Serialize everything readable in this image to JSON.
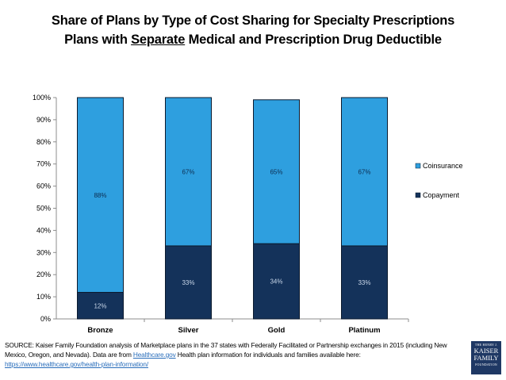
{
  "title": {
    "line1": "Share of Plans by Type of Cost Sharing for Specialty Prescriptions",
    "line2_pre": "Plans with ",
    "line2_underlined": "Separate",
    "line2_post": " Medical and Prescription Drug Deductible"
  },
  "colors": {
    "Coinsurance": "#2e9fdf",
    "Copayment": "#14325a",
    "coinsurance_label": "#0d2c4f",
    "copayment_label": "#c8d6e8"
  },
  "chart_data": {
    "type": "bar",
    "stacked": true,
    "title": "Share of Plans by Type of Cost Sharing for Specialty Prescriptions — Plans with Separate Medical and Prescription Drug Deductible",
    "categories": [
      "Bronze",
      "Silver",
      "Gold",
      "Platinum"
    ],
    "series": [
      {
        "name": "Copayment",
        "values": [
          12,
          33,
          34,
          33
        ],
        "labels": [
          "12%",
          "33%",
          "34%",
          "33%"
        ]
      },
      {
        "name": "Coinsurance",
        "values": [
          88,
          67,
          65,
          67
        ],
        "labels": [
          "88%",
          "67%",
          "65%",
          "67%"
        ]
      }
    ],
    "ylim": [
      0,
      100
    ],
    "yticks": [
      0,
      10,
      20,
      30,
      40,
      50,
      60,
      70,
      80,
      90,
      100
    ],
    "ytick_labels": [
      "0%",
      "10%",
      "20%",
      "30%",
      "40%",
      "50%",
      "60%",
      "70%",
      "80%",
      "90%",
      "100%"
    ],
    "xlabel": "",
    "ylabel": "",
    "grid": false,
    "legend": {
      "position": "right",
      "entries": [
        "Coinsurance",
        "Copayment"
      ]
    }
  },
  "source": {
    "text1": "SOURCE: Kaiser Family Foundation analysis of Marketplace plans in the 37 states with Federally Facilitated or Partnership exchanges in 2015 (including New Mexico, Oregon, and Nevada). Data are from ",
    "link1": "Healthcare.gov",
    "text2": " Health plan information for individuals and families available here: ",
    "link2": "https://www.healthcare.gov/health-plan-information/"
  },
  "logo": {
    "small_top": "THE HENRY J.",
    "line1": "KAISER",
    "line2": "FAMILY",
    "small_bottom": "FOUNDATION"
  }
}
